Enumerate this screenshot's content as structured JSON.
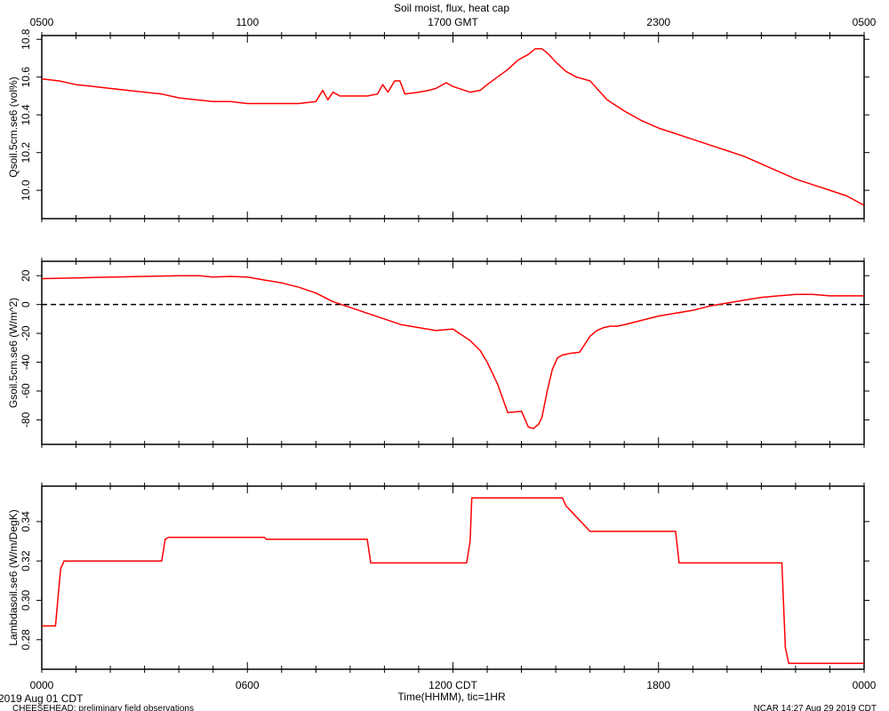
{
  "top_axis": {
    "title": "Soil moist, flux, heat cap",
    "ticks": [
      {
        "hour": 0,
        "label": "0500"
      },
      {
        "hour": 6,
        "label": "1100"
      },
      {
        "hour": 12,
        "label": "1700 GMT"
      },
      {
        "hour": 18,
        "label": "2300"
      },
      {
        "hour": 24,
        "label": "0500"
      }
    ]
  },
  "bottom_axis": {
    "xlabel": "Time(HHMM), tic=1HR",
    "ticks": [
      {
        "hour": 0,
        "label": "0000"
      },
      {
        "hour": 6,
        "label": "0600"
      },
      {
        "hour": 12,
        "label": "1200 CDT"
      },
      {
        "hour": 18,
        "label": "1800"
      },
      {
        "hour": 24,
        "label": "0000"
      }
    ]
  },
  "footer": {
    "date": "2019 Aug 01 CDT",
    "project": "CHEESEHEAD: preliminary field observations",
    "credit": "NCAR 14:27 Aug 29 2019 CDT"
  },
  "colors": {
    "series": "#ff0000",
    "axes": "#000000",
    "zero_line": "#000000"
  },
  "chart_data": [
    {
      "type": "line",
      "ylabel": "Qsoil.5cm.se6 (vol%)",
      "ylim": [
        9.85,
        10.82
      ],
      "yticks": [
        10.0,
        10.2,
        10.4,
        10.6,
        10.8
      ],
      "ytick_labels": [
        "10.0",
        "10.2",
        "10.4",
        "10.6",
        "10.8"
      ],
      "x_hours": [
        0,
        0.5,
        1,
        1.5,
        2,
        2.5,
        3,
        3.5,
        4,
        4.5,
        5,
        5.5,
        6,
        6.5,
        7,
        7.5,
        8,
        8.2,
        8.35,
        8.5,
        8.7,
        9,
        9.5,
        9.8,
        9.95,
        10.1,
        10.3,
        10.45,
        10.6,
        11,
        11.3,
        11.5,
        11.8,
        12,
        12.5,
        12.8,
        13,
        13.3,
        13.6,
        13.9,
        14.2,
        14.4,
        14.6,
        14.8,
        15,
        15.3,
        15.6,
        16,
        16.5,
        17,
        17.5,
        18,
        18.5,
        19,
        19.5,
        20,
        20.5,
        21,
        21.5,
        22,
        22.5,
        23,
        23.5,
        24
      ],
      "values": [
        10.59,
        10.58,
        10.56,
        10.55,
        10.54,
        10.53,
        10.52,
        10.51,
        10.49,
        10.48,
        10.47,
        10.47,
        10.46,
        10.46,
        10.46,
        10.46,
        10.47,
        10.53,
        10.48,
        10.52,
        10.5,
        10.5,
        10.5,
        10.51,
        10.56,
        10.52,
        10.58,
        10.58,
        10.51,
        10.52,
        10.53,
        10.54,
        10.57,
        10.55,
        10.52,
        10.53,
        10.56,
        10.6,
        10.64,
        10.69,
        10.72,
        10.75,
        10.75,
        10.72,
        10.68,
        10.63,
        10.6,
        10.58,
        10.48,
        10.42,
        10.37,
        10.33,
        10.3,
        10.27,
        10.24,
        10.21,
        10.18,
        10.14,
        10.1,
        10.06,
        10.03,
        10.0,
        9.97,
        9.92
      ]
    },
    {
      "type": "line",
      "ylabel": "Gsoil.5cm.se6 (W/m^2)",
      "ylim": [
        -97,
        30
      ],
      "yticks": [
        20,
        0,
        -20,
        -40,
        -60,
        -80
      ],
      "ytick_labels": [
        "20",
        "0",
        "-20",
        "-40",
        "-60",
        "-80"
      ],
      "zero_line": true,
      "x_hours": [
        0,
        1,
        2,
        3,
        4,
        4.6,
        5,
        5.5,
        6,
        6.5,
        7,
        7.5,
        8,
        8.5,
        9,
        9.5,
        10,
        10.5,
        11,
        11.5,
        12,
        12.5,
        12.8,
        13,
        13.3,
        13.6,
        14,
        14.2,
        14.35,
        14.5,
        14.6,
        14.75,
        14.9,
        15.05,
        15.2,
        15.4,
        15.7,
        16,
        16.2,
        16.4,
        16.6,
        16.8,
        17,
        17.5,
        18,
        18.5,
        19,
        19.5,
        20,
        20.5,
        21,
        21.5,
        22,
        22.5,
        23,
        23.5,
        24
      ],
      "values": [
        18,
        18.5,
        19,
        19.5,
        20,
        20,
        19,
        19.5,
        19,
        17,
        15,
        12,
        8,
        2,
        -2,
        -6,
        -10,
        -14,
        -16,
        -18,
        -17,
        -25,
        -32,
        -40,
        -55,
        -75,
        -74,
        -85,
        -86,
        -83,
        -78,
        -60,
        -45,
        -37,
        -35,
        -34,
        -33,
        -22,
        -18,
        -16,
        -15,
        -15,
        -14,
        -11,
        -8,
        -6,
        -4,
        -1,
        1,
        3,
        5,
        6,
        7,
        7,
        6,
        6,
        6
      ]
    },
    {
      "type": "line",
      "ylabel": "Lambdasoil.se6 (W/m/DegK)",
      "ylim": [
        0.265,
        0.358
      ],
      "yticks": [
        0.28,
        0.3,
        0.32,
        0.34
      ],
      "ytick_labels": [
        "0.28",
        "0.30",
        "0.32",
        "0.34"
      ],
      "x_hours": [
        0,
        0.4,
        0.55,
        0.65,
        3.5,
        3.6,
        3.7,
        6.5,
        6.55,
        9.5,
        9.6,
        12.4,
        12.5,
        12.55,
        15.2,
        15.3,
        16.0,
        16.05,
        18.5,
        18.6,
        21.6,
        21.7,
        21.8,
        24
      ],
      "values": [
        0.287,
        0.287,
        0.316,
        0.32,
        0.32,
        0.331,
        0.332,
        0.332,
        0.331,
        0.331,
        0.319,
        0.319,
        0.33,
        0.352,
        0.352,
        0.348,
        0.335,
        0.335,
        0.335,
        0.319,
        0.319,
        0.276,
        0.268,
        0.268
      ]
    }
  ]
}
